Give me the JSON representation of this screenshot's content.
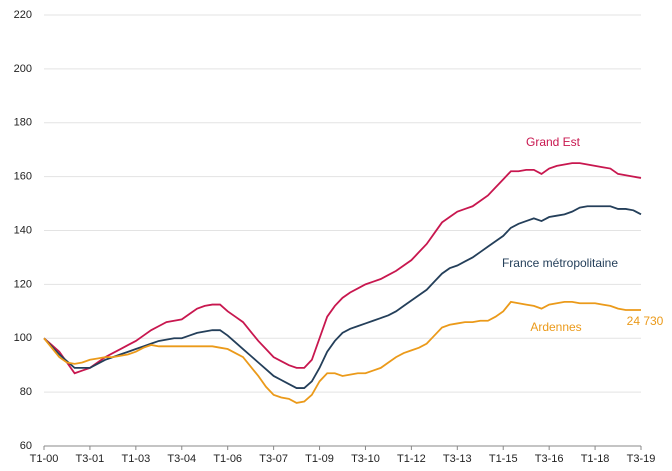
{
  "chart_data": {
    "type": "line",
    "categories": [
      "T1-00",
      null,
      null,
      null,
      null,
      null,
      "T3-01",
      null,
      null,
      null,
      null,
      null,
      "T1-03",
      null,
      null,
      null,
      null,
      null,
      "T3-04",
      null,
      null,
      null,
      null,
      null,
      "T1-06",
      null,
      null,
      null,
      null,
      null,
      "T3-07",
      null,
      null,
      null,
      null,
      null,
      "T1-09",
      null,
      null,
      null,
      null,
      null,
      "T3-10",
      null,
      null,
      null,
      null,
      null,
      "T1-12",
      null,
      null,
      null,
      null,
      null,
      "T3-13",
      null,
      null,
      null,
      null,
      null,
      "T1-15",
      null,
      null,
      null,
      null,
      null,
      "T3-16",
      null,
      null,
      null,
      null,
      null,
      "T1-18",
      null,
      null,
      null,
      null,
      null,
      "T3-19"
    ],
    "series": [
      {
        "name": "Grand Est",
        "color": "#c8174f",
        "values": [
          100,
          97.5,
          95,
          91,
          87,
          88,
          89,
          91,
          93,
          94.5,
          96,
          97.5,
          99,
          101,
          103,
          104.5,
          106,
          106.5,
          107,
          109,
          111,
          112,
          112.5,
          112.5,
          110,
          108,
          106,
          102.5,
          99,
          96,
          93,
          91.5,
          90,
          89,
          89,
          92,
          100,
          108,
          112,
          115,
          117,
          118.5,
          120,
          121,
          122,
          123.5,
          125,
          127,
          129,
          132,
          135,
          139,
          143,
          145,
          147,
          148,
          149,
          151,
          153,
          156,
          159,
          162,
          162,
          162.5,
          162.5,
          161,
          163,
          164,
          164.5,
          165,
          165,
          164.5,
          164,
          163.5,
          163,
          161,
          160.5,
          160,
          159.5
        ]
      },
      {
        "name": "France métropolitaine",
        "color": "#243f5a",
        "values": [
          100,
          97,
          94,
          91.5,
          89,
          89,
          89,
          90.5,
          92,
          93,
          94,
          95,
          96,
          97,
          98,
          99,
          99.5,
          100,
          100,
          101,
          102,
          102.5,
          103,
          103,
          101,
          98.5,
          96,
          93.5,
          91,
          88.5,
          86,
          84.5,
          83,
          81.5,
          81.5,
          84,
          89,
          95,
          99,
          102,
          103.5,
          104.5,
          105.5,
          106.5,
          107.5,
          108.5,
          110,
          112,
          114,
          116,
          118,
          121,
          124,
          126,
          127,
          128.5,
          130,
          132,
          134,
          136,
          138,
          141,
          142.5,
          143.5,
          144.5,
          143.5,
          145,
          145.5,
          146,
          147,
          148.5,
          149,
          149,
          149,
          149,
          148,
          148,
          147.5,
          146
        ]
      },
      {
        "name": "Ardennes",
        "color": "#eb9a1a",
        "values": [
          100,
          96.5,
          93,
          91,
          90.5,
          91,
          92,
          92.5,
          93,
          93,
          93.5,
          94,
          95,
          96.5,
          97.5,
          97,
          97,
          97,
          97,
          97,
          97,
          97,
          97,
          96.5,
          96,
          94.5,
          93,
          89.5,
          86,
          82,
          79,
          78,
          77.5,
          76,
          76.5,
          79,
          84,
          87,
          87,
          86,
          86.5,
          87,
          87,
          88,
          89,
          91,
          93,
          94.5,
          95.5,
          96.5,
          98,
          101,
          104,
          105,
          105.5,
          106,
          106,
          106.5,
          106.5,
          108,
          110,
          113.5,
          113,
          112.5,
          112,
          111,
          112.5,
          113,
          113.5,
          113.5,
          113,
          113,
          113,
          112.5,
          112,
          111,
          110.5,
          110.5,
          110.5
        ]
      }
    ],
    "annotations": [
      "24 730"
    ],
    "ylim": [
      60,
      220
    ],
    "yticks": [
      60,
      80,
      100,
      120,
      140,
      160,
      180,
      200,
      220
    ],
    "grid": true
  }
}
